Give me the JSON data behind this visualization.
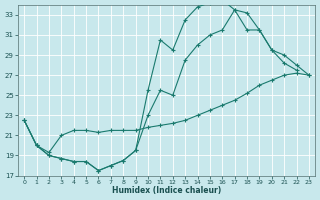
{
  "xlabel": "Humidex (Indice chaleur)",
  "bg_color": "#c8e8ec",
  "grid_color": "#b0d4d8",
  "line_color": "#1a7a6e",
  "xlim_min": -0.5,
  "xlim_max": 23.5,
  "ylim_min": 17,
  "ylim_max": 34,
  "yticks": [
    17,
    19,
    21,
    23,
    25,
    27,
    29,
    31,
    33
  ],
  "xticks": [
    0,
    1,
    2,
    3,
    4,
    5,
    6,
    7,
    8,
    9,
    10,
    11,
    12,
    13,
    14,
    15,
    16,
    17,
    18,
    19,
    20,
    21,
    22,
    23
  ],
  "line1_x": [
    0,
    1,
    2,
    3,
    4,
    5,
    6,
    7,
    8,
    9,
    10,
    11,
    12,
    13,
    14,
    15,
    16,
    17,
    18,
    19,
    20,
    21,
    22
  ],
  "line1_y": [
    22.5,
    20.0,
    19.0,
    18.7,
    18.4,
    18.4,
    17.5,
    18.0,
    18.5,
    19.5,
    25.5,
    30.5,
    29.5,
    32.5,
    33.8,
    34.2,
    34.5,
    33.5,
    33.2,
    31.5,
    29.5,
    28.2,
    27.5
  ],
  "line2_x": [
    0,
    1,
    2,
    3,
    4,
    5,
    6,
    7,
    8,
    9,
    10,
    11,
    12,
    13,
    14,
    15,
    16,
    17,
    18,
    19,
    20,
    21,
    22,
    23
  ],
  "line2_y": [
    22.5,
    20.0,
    19.0,
    18.7,
    18.4,
    18.4,
    17.5,
    18.0,
    18.5,
    19.5,
    23.0,
    25.5,
    25.0,
    28.5,
    30.0,
    31.0,
    31.5,
    33.5,
    31.5,
    31.5,
    29.5,
    29.0,
    28.0,
    27.0
  ],
  "line3_x": [
    0,
    1,
    2,
    3,
    4,
    5,
    6,
    7,
    8,
    9,
    10,
    11,
    12,
    13,
    14,
    15,
    16,
    17,
    18,
    19,
    20,
    21,
    22,
    23
  ],
  "line3_y": [
    22.5,
    20.0,
    19.3,
    21.0,
    21.5,
    21.5,
    21.3,
    21.5,
    21.5,
    21.5,
    21.8,
    22.0,
    22.2,
    22.5,
    23.0,
    23.5,
    24.0,
    24.5,
    25.2,
    26.0,
    26.5,
    27.0,
    27.2,
    27.0
  ]
}
